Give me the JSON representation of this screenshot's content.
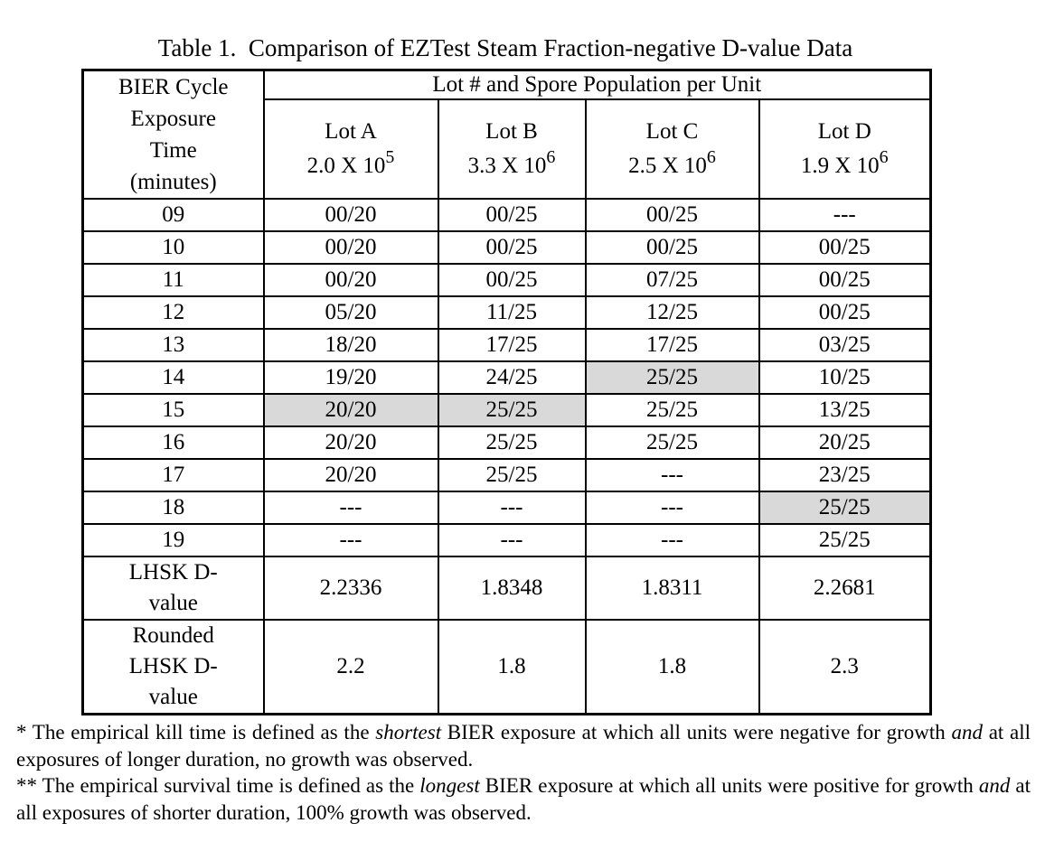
{
  "page": {
    "background": "#ffffff",
    "text_color": "#000000",
    "border_color": "#000000",
    "highlight_color": "#d9d9d9"
  },
  "title": "Table 1.  Comparison of EZTest Steam Fraction-negative D-value Data",
  "table": {
    "corner_header_lines": [
      "BIER Cycle",
      "Exposure",
      "Time",
      "(minutes)"
    ],
    "group_header": "Lot # and Spore Population per Unit",
    "lot_headers": [
      {
        "name": "Lot A",
        "population": "2.0 X 10",
        "exponent": "5"
      },
      {
        "name": "Lot B",
        "population": "3.3 X 10",
        "exponent": "6"
      },
      {
        "name": "Lot C",
        "population": "2.5 X 10",
        "exponent": "6"
      },
      {
        "name": "Lot D",
        "population": "1.9 X 10",
        "exponent": "6"
      }
    ],
    "data_rows": [
      {
        "time": "09",
        "values": [
          "00/20",
          "00/25",
          "00/25",
          "---"
        ],
        "highlight": [
          false,
          false,
          false,
          false
        ]
      },
      {
        "time": "10",
        "values": [
          "00/20",
          "00/25",
          "00/25",
          "00/25"
        ],
        "highlight": [
          false,
          false,
          false,
          false
        ]
      },
      {
        "time": "11",
        "values": [
          "00/20",
          "00/25",
          "07/25",
          "00/25"
        ],
        "highlight": [
          false,
          false,
          false,
          false
        ]
      },
      {
        "time": "12",
        "values": [
          "05/20",
          "11/25",
          "12/25",
          "00/25"
        ],
        "highlight": [
          false,
          false,
          false,
          false
        ]
      },
      {
        "time": "13",
        "values": [
          "18/20",
          "17/25",
          "17/25",
          "03/25"
        ],
        "highlight": [
          false,
          false,
          false,
          false
        ]
      },
      {
        "time": "14",
        "values": [
          "19/20",
          "24/25",
          "25/25",
          "10/25"
        ],
        "highlight": [
          false,
          false,
          true,
          false
        ]
      },
      {
        "time": "15",
        "values": [
          "20/20",
          "25/25",
          "25/25",
          "13/25"
        ],
        "highlight": [
          true,
          true,
          false,
          false
        ]
      },
      {
        "time": "16",
        "values": [
          "20/20",
          "25/25",
          "25/25",
          "20/25"
        ],
        "highlight": [
          false,
          false,
          false,
          false
        ]
      },
      {
        "time": "17",
        "values": [
          "20/20",
          "25/25",
          "---",
          "23/25"
        ],
        "highlight": [
          false,
          false,
          false,
          false
        ]
      },
      {
        "time": "18",
        "values": [
          "---",
          "---",
          "---",
          "25/25"
        ],
        "highlight": [
          false,
          false,
          false,
          true
        ]
      },
      {
        "time": "19",
        "values": [
          "---",
          "---",
          "---",
          "25/25"
        ],
        "highlight": [
          false,
          false,
          false,
          false
        ]
      }
    ],
    "summary_rows": [
      {
        "label_lines": [
          "LHSK D-",
          "value"
        ],
        "values": [
          "2.2336",
          "1.8348",
          "1.8311",
          "2.2681"
        ]
      },
      {
        "label_lines": [
          "Rounded",
          "LHSK D-",
          "value"
        ],
        "values": [
          "2.2",
          "1.8",
          "1.8",
          "2.3"
        ]
      }
    ]
  },
  "footnotes": [
    {
      "segments": [
        {
          "text": "* The empirical kill time is defined as the "
        },
        {
          "text": "shortest",
          "italic": true
        },
        {
          "text": " BIER exposure at which all units were negative for growth "
        },
        {
          "text": "and",
          "italic": true
        },
        {
          "text": " at all exposures of longer duration, no growth was observed."
        }
      ]
    },
    {
      "segments": [
        {
          "text": "** The empirical survival time is defined as the "
        },
        {
          "text": "longest",
          "italic": true
        },
        {
          "text": " BIER exposure at which all units were positive for growth "
        },
        {
          "text": "and",
          "italic": true
        },
        {
          "text": " at all exposures of shorter duration, 100% growth was observed."
        }
      ]
    }
  ]
}
